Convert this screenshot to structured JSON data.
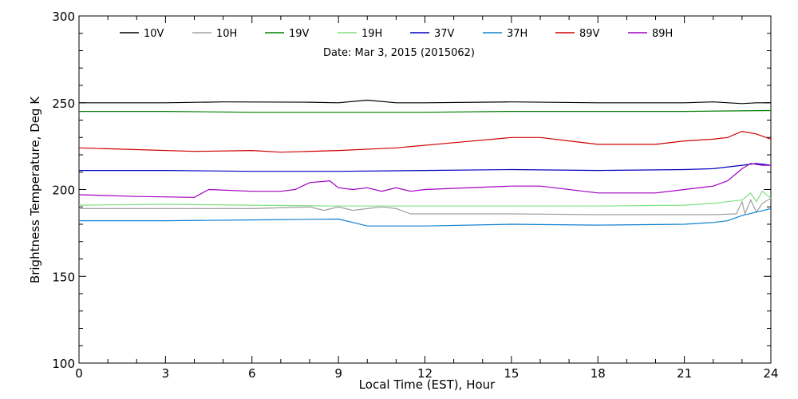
{
  "chart_data": {
    "type": "line",
    "subtitle": "Date: Mar  3, 2015 (2015062)",
    "xlabel": "Local Time (EST), Hour",
    "ylabel": "Brightness Temperature, Deg K",
    "xlim": [
      0,
      24
    ],
    "ylim": [
      100,
      300
    ],
    "xticks": [
      0,
      3,
      6,
      9,
      12,
      15,
      18,
      21,
      24
    ],
    "xtick_labels": [
      "0",
      "3",
      "6",
      "9",
      "12",
      "15",
      "18",
      "21",
      "24"
    ],
    "yticks": [
      100,
      150,
      200,
      250,
      300
    ],
    "ytick_labels": [
      "100",
      "150",
      "200",
      "250",
      "300"
    ],
    "grid": false,
    "legend_position": "top",
    "series": [
      {
        "name": "10V",
        "color": "#000000",
        "points": [
          [
            0,
            250
          ],
          [
            3,
            250
          ],
          [
            5,
            250.5
          ],
          [
            8,
            250.3
          ],
          [
            9,
            250
          ],
          [
            10,
            251.5
          ],
          [
            11,
            250
          ],
          [
            12,
            250
          ],
          [
            15,
            250.5
          ],
          [
            18,
            250
          ],
          [
            21,
            250
          ],
          [
            22,
            250.5
          ],
          [
            23,
            249.5
          ],
          [
            23.5,
            250
          ],
          [
            24,
            250
          ]
        ]
      },
      {
        "name": "10H",
        "color": "#a0a0a0",
        "points": [
          [
            0,
            189
          ],
          [
            3,
            189
          ],
          [
            6,
            189
          ],
          [
            8,
            190
          ],
          [
            8.5,
            188
          ],
          [
            9,
            190
          ],
          [
            9.5,
            188
          ],
          [
            10,
            189
          ],
          [
            10.5,
            190
          ],
          [
            11,
            189
          ],
          [
            11.5,
            186
          ],
          [
            12,
            186
          ],
          [
            15,
            186
          ],
          [
            18,
            185.5
          ],
          [
            21,
            185.5
          ],
          [
            22,
            185.5
          ],
          [
            22.8,
            186
          ],
          [
            23,
            193
          ],
          [
            23.1,
            186
          ],
          [
            23.3,
            194
          ],
          [
            23.5,
            187
          ],
          [
            23.7,
            192
          ],
          [
            24,
            195
          ]
        ]
      },
      {
        "name": "19V",
        "color": "#008000",
        "points": [
          [
            0,
            245
          ],
          [
            3,
            245
          ],
          [
            6,
            244.5
          ],
          [
            9,
            244.5
          ],
          [
            12,
            244.5
          ],
          [
            15,
            245
          ],
          [
            18,
            245
          ],
          [
            21,
            245
          ],
          [
            24,
            245.5
          ]
        ]
      },
      {
        "name": "19H",
        "color": "#80e080",
        "points": [
          [
            0,
            191
          ],
          [
            3,
            191.5
          ],
          [
            6,
            191
          ],
          [
            9,
            190.5
          ],
          [
            12,
            190.5
          ],
          [
            15,
            190.5
          ],
          [
            18,
            190.5
          ],
          [
            21,
            191
          ],
          [
            22,
            192
          ],
          [
            22.5,
            193
          ],
          [
            23,
            194
          ],
          [
            23.3,
            198
          ],
          [
            23.5,
            193
          ],
          [
            23.7,
            199
          ],
          [
            24,
            195
          ]
        ]
      },
      {
        "name": "37V",
        "color": "#0000c0",
        "points": [
          [
            0,
            211
          ],
          [
            3,
            211
          ],
          [
            6,
            210.5
          ],
          [
            9,
            210.5
          ],
          [
            12,
            211
          ],
          [
            15,
            211.5
          ],
          [
            18,
            211
          ],
          [
            21,
            211.5
          ],
          [
            22,
            212
          ],
          [
            23,
            214
          ],
          [
            23.5,
            215
          ],
          [
            24,
            214
          ]
        ]
      },
      {
        "name": "37H",
        "color": "#1080d0",
        "points": [
          [
            0,
            182
          ],
          [
            3,
            182
          ],
          [
            6,
            182.5
          ],
          [
            9,
            183
          ],
          [
            9.5,
            181
          ],
          [
            10,
            179
          ],
          [
            12,
            179
          ],
          [
            15,
            180
          ],
          [
            18,
            179.5
          ],
          [
            21,
            180
          ],
          [
            22,
            181
          ],
          [
            22.5,
            182
          ],
          [
            23,
            185
          ],
          [
            23.5,
            187
          ],
          [
            24,
            189
          ]
        ]
      },
      {
        "name": "89V",
        "color": "#d00000",
        "points": [
          [
            0,
            224
          ],
          [
            2,
            223
          ],
          [
            4,
            222
          ],
          [
            6,
            222.5
          ],
          [
            7,
            221.5
          ],
          [
            9,
            222.5
          ],
          [
            11,
            224
          ],
          [
            13,
            227
          ],
          [
            15,
            230
          ],
          [
            16,
            230
          ],
          [
            17,
            228
          ],
          [
            18,
            226
          ],
          [
            20,
            226
          ],
          [
            21,
            228
          ],
          [
            22,
            229
          ],
          [
            22.5,
            230
          ],
          [
            23,
            233.5
          ],
          [
            23.5,
            232
          ],
          [
            24,
            229
          ]
        ]
      },
      {
        "name": "89H",
        "color": "#a000c0",
        "points": [
          [
            0,
            197
          ],
          [
            2,
            196
          ],
          [
            4,
            195.5
          ],
          [
            4.5,
            200
          ],
          [
            6,
            199
          ],
          [
            7,
            199
          ],
          [
            7.5,
            200
          ],
          [
            8,
            204
          ],
          [
            8.7,
            205
          ],
          [
            9,
            201
          ],
          [
            9.5,
            200
          ],
          [
            10,
            201
          ],
          [
            10.5,
            199
          ],
          [
            11,
            201
          ],
          [
            11.5,
            199
          ],
          [
            12,
            200
          ],
          [
            15,
            202
          ],
          [
            16,
            202
          ],
          [
            18,
            198
          ],
          [
            20,
            198
          ],
          [
            21,
            200
          ],
          [
            22,
            202
          ],
          [
            22.5,
            205
          ],
          [
            23,
            212
          ],
          [
            23.3,
            215
          ],
          [
            23.7,
            214
          ],
          [
            24,
            214
          ]
        ]
      }
    ]
  }
}
